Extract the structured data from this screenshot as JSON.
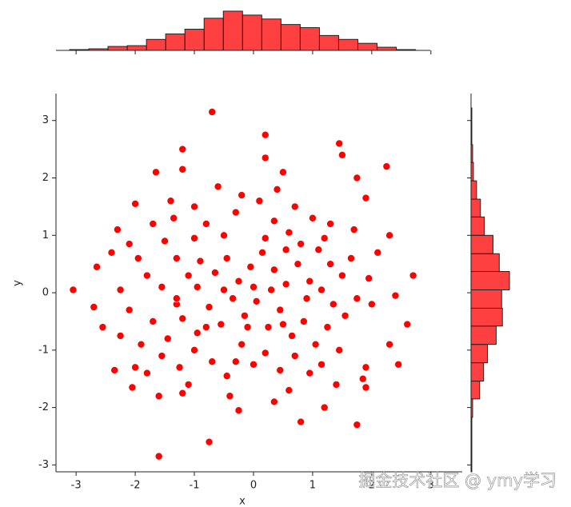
{
  "chart_data": [
    {
      "type": "scatter",
      "xlabel": "x",
      "ylabel": "y",
      "color": "#ff0000",
      "xlim": [
        -3.34,
        3.53
      ],
      "ylim": [
        -3.12,
        3.47
      ],
      "xticks": [
        -3,
        -2,
        -1,
        0,
        1,
        2,
        3
      ],
      "yticks": [
        -3,
        -2,
        -1,
        0,
        1,
        2,
        3
      ],
      "x": [
        -3.05,
        -2.65,
        -2.55,
        -2.25,
        -2.7,
        -2.3,
        -2.0,
        -1.65,
        -1.2,
        -1.2,
        -0.7,
        0.2,
        0.2,
        0.5,
        1.45,
        1.5,
        1.75,
        2.25,
        1.9,
        2.3,
        2.7,
        2.4,
        2.3,
        2.45,
        1.9,
        1.85,
        1.9,
        1.75,
        1.2,
        0.8,
        0.35,
        -0.25,
        -0.75,
        -1.6,
        -1.6,
        -1.2,
        -2.05,
        -2.35,
        -2.0,
        -1.8,
        -2.1,
        -2.25,
        -1.35,
        -1.5,
        -1.3,
        -1.0,
        -0.8,
        -0.5,
        -0.3,
        -0.2,
        0.1,
        0.35,
        0.6,
        0.8,
        1.1,
        1.3,
        1.5,
        1.65,
        1.95,
        2.1,
        -1.8,
        -1.55,
        -1.3,
        -1.1,
        -0.9,
        -0.65,
        -0.45,
        -0.25,
        -0.05,
        0.15,
        0.35,
        0.55,
        0.75,
        0.95,
        1.15,
        1.35,
        1.55,
        1.75,
        -1.7,
        -1.45,
        -1.2,
        -0.95,
        -0.75,
        -0.55,
        -0.35,
        -0.15,
        0.05,
        0.25,
        0.45,
        0.65,
        0.85,
        1.05,
        1.25,
        1.45,
        -1.55,
        -1.25,
        -1.0,
        -0.7,
        -0.45,
        -0.2,
        0.0,
        0.2,
        0.45,
        0.7,
        0.95,
        1.15,
        -1.9,
        -2.1,
        -1.95,
        -1.7,
        -1.4,
        -1.0,
        -0.6,
        0.4,
        0.7,
        1.0,
        1.3,
        0.0,
        -0.1,
        0.3,
        -0.5,
        0.55,
        -0.8,
        0.9,
        -1.1,
        -0.4,
        0.6,
        1.4,
        -2.4,
        2.6,
        2.0,
        1.7,
        -1.3,
        0.2,
        -0.3,
        0.5,
        -0.95,
        1.2
      ],
      "y": [
        0.05,
        0.45,
        -0.6,
        -0.75,
        -0.25,
        1.1,
        1.55,
        2.1,
        2.5,
        2.15,
        3.15,
        2.75,
        2.35,
        2.1,
        2.6,
        2.4,
        2.0,
        2.2,
        1.65,
        1.0,
        0.3,
        -0.05,
        -0.9,
        -1.25,
        -1.3,
        -1.5,
        -1.65,
        -2.3,
        -2.0,
        -2.25,
        -1.9,
        -2.05,
        -2.6,
        -2.85,
        -1.8,
        -1.75,
        -1.65,
        -1.35,
        -1.3,
        -1.4,
        0.85,
        0.05,
        1.3,
        0.9,
        0.6,
        0.95,
        1.2,
        1.0,
        1.4,
        1.7,
        1.6,
        1.25,
        1.05,
        0.85,
        0.75,
        0.5,
        0.3,
        0.6,
        0.25,
        0.7,
        0.3,
        0.1,
        -0.2,
        0.3,
        0.55,
        0.35,
        0.6,
        0.2,
        0.45,
        0.7,
        0.4,
        0.15,
        0.5,
        0.2,
        0.05,
        -0.2,
        -0.4,
        -0.1,
        -0.5,
        -0.8,
        -0.45,
        -0.7,
        -0.25,
        -0.55,
        -0.1,
        -0.4,
        -0.15,
        -0.6,
        -0.3,
        -0.75,
        -0.5,
        -0.9,
        -0.6,
        -1.0,
        -1.1,
        -1.3,
        -1.0,
        -1.2,
        -1.45,
        -0.9,
        -1.25,
        -1.05,
        -1.35,
        -1.1,
        -1.4,
        -1.25,
        -0.9,
        -0.3,
        0.6,
        1.2,
        1.6,
        1.5,
        1.85,
        1.8,
        1.5,
        1.3,
        1.2,
        0.1,
        -0.6,
        0.05,
        0.05,
        0.75,
        -0.6,
        -0.1,
        -1.6,
        -1.8,
        -1.7,
        -1.6,
        0.7,
        -0.55,
        -0.2,
        1.1,
        -0.1,
        0.95,
        -1.2,
        -0.55,
        0.1,
        0.95
      ]
    },
    {
      "type": "histogram",
      "orientation": "vertical",
      "color": "#ff0000",
      "bins": [
        -3.11,
        -2.785,
        -2.46,
        -2.135,
        -1.81,
        -1.485,
        -1.16,
        -0.835,
        -0.51,
        -0.185,
        0.14,
        0.465,
        0.79,
        1.115,
        1.44,
        1.765,
        2.09,
        2.415,
        2.74
      ],
      "values": [
        1,
        2,
        5,
        6,
        14,
        21,
        27,
        41,
        50,
        45,
        40,
        33,
        29,
        19,
        14,
        9,
        4,
        1
      ],
      "ylim": [
        0,
        52
      ]
    },
    {
      "type": "histogram",
      "orientation": "horizontal",
      "color": "#ff0000",
      "bins": [
        -3.12,
        -2.8,
        -2.49,
        -2.17,
        -1.85,
        -1.54,
        -1.22,
        -0.9,
        -0.58,
        -0.27,
        0.05,
        0.37,
        0.68,
        1.0,
        1.32,
        1.63,
        1.95,
        2.27,
        2.58,
        2.9,
        3.22
      ],
      "values": [
        1,
        1,
        1,
        2,
        11,
        16,
        21,
        32,
        40,
        39,
        49,
        36,
        28,
        17,
        12,
        7,
        3,
        2,
        1,
        1
      ],
      "xlim": [
        0,
        52
      ]
    }
  ],
  "watermark": "掘金技术社区 @ ymy学习"
}
